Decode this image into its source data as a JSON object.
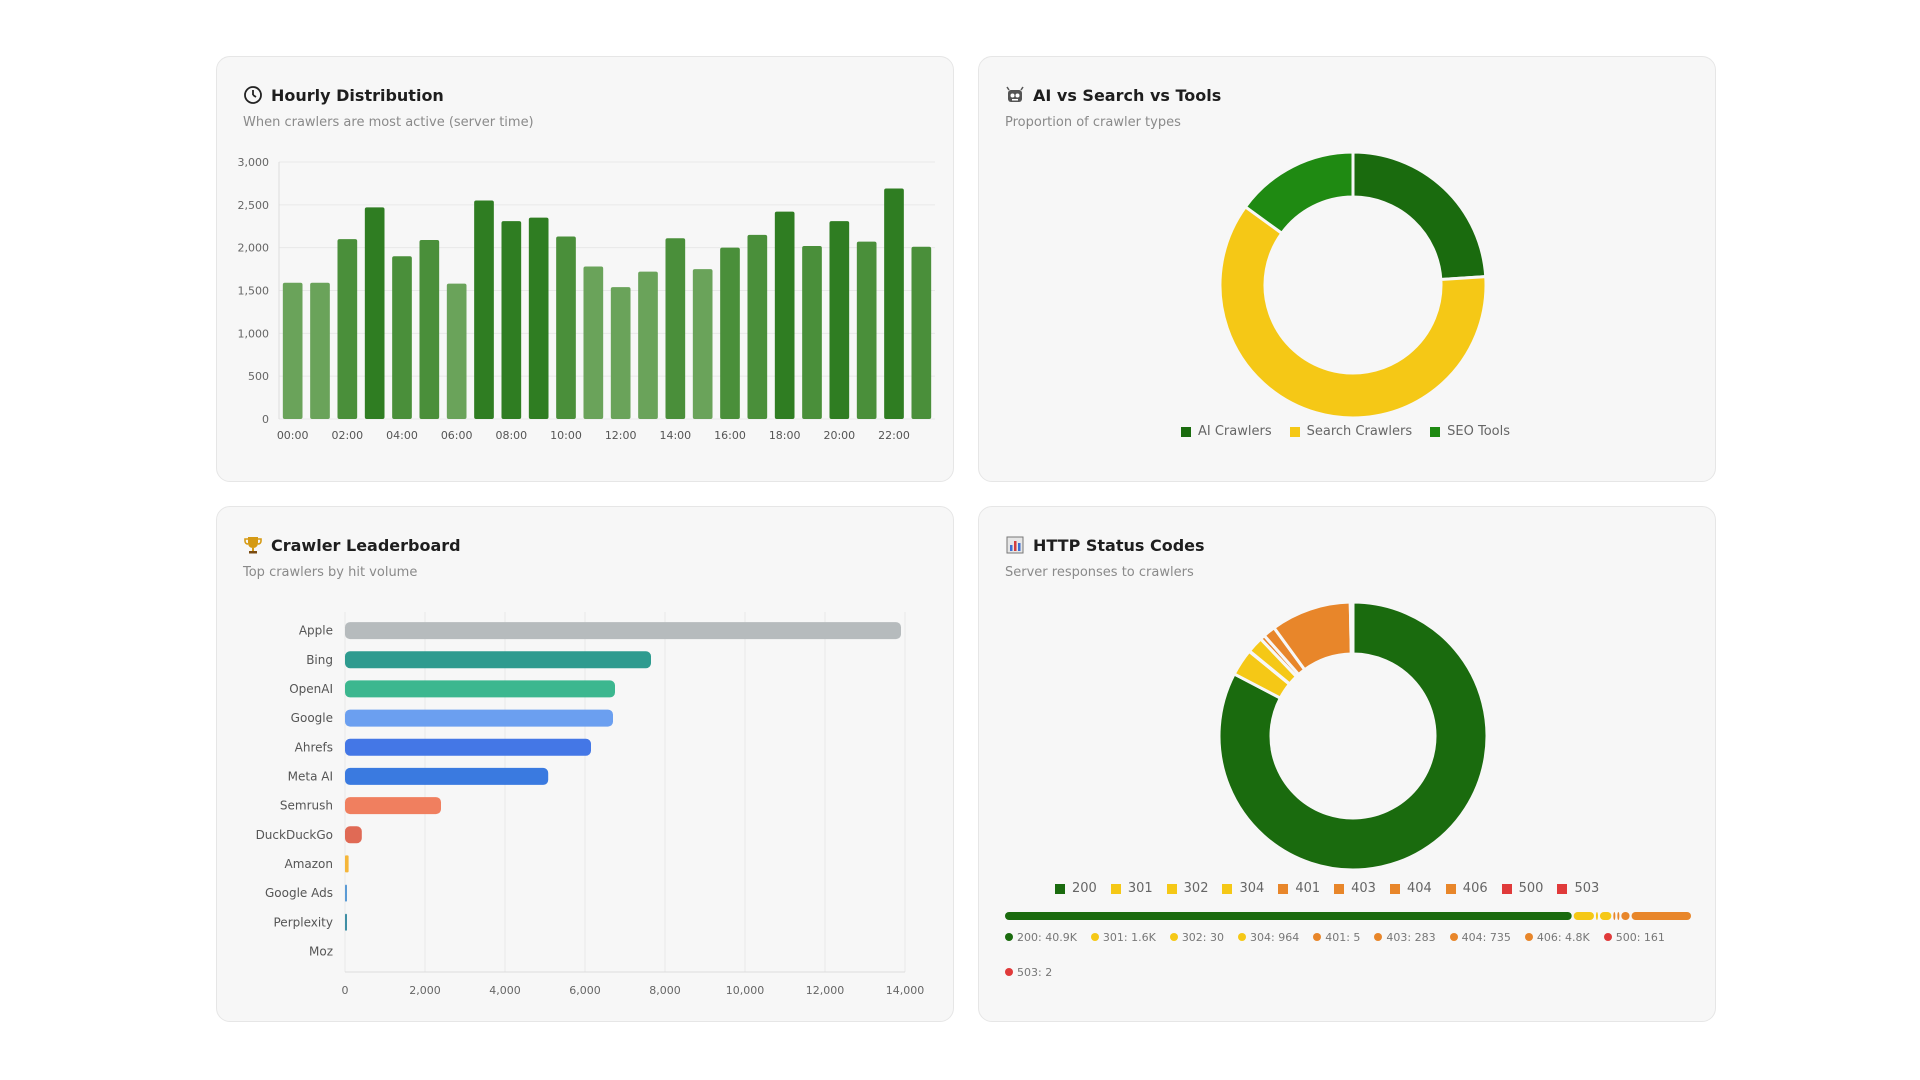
{
  "cards": {
    "hourly": {
      "title": "Hourly Distribution",
      "subtitle": "When crawlers are most active (server time)"
    },
    "mix": {
      "title": "AI vs Search vs Tools",
      "subtitle": "Proportion of crawler types"
    },
    "leader": {
      "title": "Crawler Leaderboard",
      "subtitle": "Top crawlers by hit volume"
    },
    "status": {
      "title": "HTTP Status Codes",
      "subtitle": "Server responses to crawlers"
    }
  },
  "icons": {
    "hourly": "clock-icon",
    "mix": "robot-face-icon",
    "leader": "trophy-icon",
    "status": "bar-chart-icon"
  },
  "chart_data": [
    {
      "id": "hourly",
      "type": "bar",
      "title": "Hourly Distribution",
      "categories": [
        "00:00",
        "01:00",
        "02:00",
        "03:00",
        "04:00",
        "05:00",
        "06:00",
        "07:00",
        "08:00",
        "09:00",
        "10:00",
        "11:00",
        "12:00",
        "13:00",
        "14:00",
        "15:00",
        "16:00",
        "17:00",
        "18:00",
        "19:00",
        "20:00",
        "21:00",
        "22:00",
        "23:00"
      ],
      "tick_labels": [
        "00:00",
        "02:00",
        "04:00",
        "06:00",
        "08:00",
        "10:00",
        "12:00",
        "14:00",
        "16:00",
        "18:00",
        "20:00",
        "22:00"
      ],
      "values": [
        1590,
        1590,
        2100,
        2470,
        1900,
        2090,
        1580,
        2550,
        2310,
        2350,
        2130,
        1780,
        1540,
        1720,
        2110,
        1750,
        2000,
        2150,
        2420,
        2020,
        2310,
        2070,
        2690,
        2010
      ],
      "ylim": [
        0,
        3000
      ],
      "yticks": [
        0,
        500,
        1000,
        1500,
        2000,
        2500,
        3000
      ],
      "ytick_labels": [
        "0",
        "500",
        "1,000",
        "1,500",
        "2,000",
        "2,500",
        "3,000"
      ],
      "grid": true,
      "colors": {
        "low": "#6aa35a",
        "mid": "#4a8f3a",
        "high": "#2f7d22"
      }
    },
    {
      "id": "mix",
      "type": "pie",
      "title": "AI vs Search vs Tools",
      "labels": [
        "AI Crawlers",
        "Search Crawlers",
        "SEO Tools"
      ],
      "values": [
        24,
        61,
        15
      ],
      "colors": [
        "#1a6b0e",
        "#f5c816",
        "#1f8a12"
      ],
      "legend_position": "bottom"
    },
    {
      "id": "leader",
      "type": "bar",
      "orientation": "horizontal",
      "title": "Crawler Leaderboard",
      "categories": [
        "Apple",
        "Bing",
        "OpenAI",
        "Google",
        "Ahrefs",
        "Meta AI",
        "Semrush",
        "DuckDuckGo",
        "Amazon",
        "Google Ads",
        "Perplexity",
        "Moz"
      ],
      "values": [
        13900,
        7650,
        6750,
        6700,
        6150,
        5080,
        2400,
        420,
        90,
        40,
        30,
        0
      ],
      "colors": [
        "#b6bbbd",
        "#2e9b8f",
        "#3cb78f",
        "#6b9ff0",
        "#4477e6",
        "#3a7ae0",
        "#f07f5f",
        "#e06a55",
        "#f5b63a",
        "#5b9bd5",
        "#3f8fa5",
        "#999999"
      ],
      "xlim": [
        0,
        14000
      ],
      "xticks": [
        0,
        2000,
        4000,
        6000,
        8000,
        10000,
        12000,
        14000
      ],
      "xtick_labels": [
        "0",
        "2,000",
        "4,000",
        "6,000",
        "8,000",
        "10,000",
        "12,000",
        "14,000"
      ],
      "grid": true
    },
    {
      "id": "status",
      "type": "pie",
      "title": "HTTP Status Codes",
      "labels": [
        "200",
        "301",
        "302",
        "304",
        "401",
        "403",
        "404",
        "406",
        "500",
        "503"
      ],
      "values": [
        40900,
        1600,
        30,
        964,
        5,
        283,
        735,
        4800,
        161,
        2
      ],
      "colors": [
        "#1a6b0e",
        "#f5c816",
        "#f5c816",
        "#f5c816",
        "#e8862a",
        "#e8862a",
        "#e8862a",
        "#e8862a",
        "#e03a3a",
        "#e03a3a"
      ],
      "legend_position": "bottom"
    }
  ],
  "legends": {
    "mix": [
      {
        "label": "AI Crawlers",
        "color": "#1a6b0e"
      },
      {
        "label": "Search Crawlers",
        "color": "#f5c816"
      },
      {
        "label": "SEO Tools",
        "color": "#1f8a12"
      }
    ],
    "status": [
      {
        "label": "200",
        "color": "#1a6b0e"
      },
      {
        "label": "301",
        "color": "#f5c816"
      },
      {
        "label": "302",
        "color": "#f5c816"
      },
      {
        "label": "304",
        "color": "#f5c816"
      },
      {
        "label": "401",
        "color": "#e8862a"
      },
      {
        "label": "403",
        "color": "#e8862a"
      },
      {
        "label": "404",
        "color": "#e8862a"
      },
      {
        "label": "406",
        "color": "#e8862a"
      },
      {
        "label": "500",
        "color": "#e03a3a"
      },
      {
        "label": "503",
        "color": "#e03a3a"
      }
    ]
  },
  "status_breakdown": [
    {
      "text": "200: 40.9K",
      "color": "#1a6b0e"
    },
    {
      "text": "301: 1.6K",
      "color": "#f5c816"
    },
    {
      "text": "302: 30",
      "color": "#f5c816"
    },
    {
      "text": "304: 964",
      "color": "#f5c816"
    },
    {
      "text": "401: 5",
      "color": "#e8862a"
    },
    {
      "text": "403: 283",
      "color": "#e8862a"
    },
    {
      "text": "404: 735",
      "color": "#e8862a"
    },
    {
      "text": "406: 4.8K",
      "color": "#e8862a"
    },
    {
      "text": "500: 161",
      "color": "#e03a3a"
    },
    {
      "text": "503: 2",
      "color": "#e03a3a"
    }
  ]
}
